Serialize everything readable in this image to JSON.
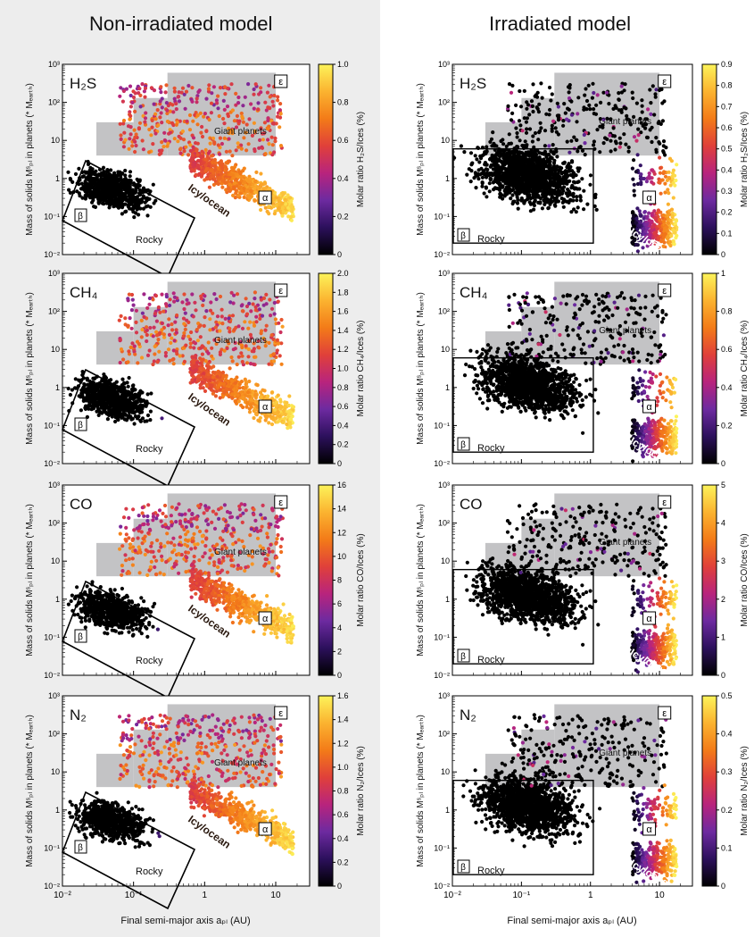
{
  "titles": {
    "left": "Non-irradiated model",
    "right": "Irradiated model"
  },
  "xlabel_left": "Final semi-major axis aₚₗ (AU)",
  "xlabel_right": "Final semi-major axis aₚₗ (AU)",
  "ylabel": "Mass of solids Mˢₚₗ in planets (* Mₑₐᵣₜₕ)",
  "region_labels": {
    "epsilon": "ε",
    "giant": "Giant planets",
    "alpha": "α",
    "beta": "β",
    "rocky": "Rocky",
    "icy": "Icy/ocean"
  },
  "colormap": [
    "#000000",
    "#2c105c",
    "#6d2aa0",
    "#b8247d",
    "#e0403a",
    "#f37b18",
    "#fbb330",
    "#fcf35a"
  ],
  "chart_data": [
    {
      "type": "scatter",
      "panel": "left",
      "species": "H₂S",
      "cbar_label": "Molar ratio H₂S/Ices (%)",
      "cbar_ticks": [
        "0",
        "0.2",
        "0.4",
        "0.6",
        "0.8",
        "1.0"
      ],
      "cbar_range": [
        0,
        1.0
      ],
      "xlim": [
        0.01,
        30
      ],
      "ylim": [
        0.01,
        1000
      ],
      "xscale": "log",
      "yscale": "log",
      "xticks": [
        "10⁻²",
        "10⁻¹",
        "1",
        "10"
      ],
      "yticks": [
        "10⁻²",
        "10⁻¹",
        "1",
        "10",
        "10²",
        "10³"
      ]
    },
    {
      "type": "scatter",
      "panel": "right",
      "species": "H₂S",
      "cbar_label": "Molar ratio H₂S/Ices (%)",
      "cbar_ticks": [
        "0",
        "0.1",
        "0.2",
        "0.3",
        "0.4",
        "0.5",
        "0.6",
        "0.7",
        "0.8",
        "0.9"
      ],
      "cbar_range": [
        0,
        0.9
      ],
      "xlim": [
        0.01,
        30
      ],
      "ylim": [
        0.01,
        1000
      ],
      "xscale": "log",
      "yscale": "log",
      "xticks": [
        "10⁻²",
        "10⁻¹",
        "1",
        "10"
      ],
      "yticks": [
        "10⁻²",
        "10⁻¹",
        "1",
        "10",
        "10²",
        "10³"
      ]
    },
    {
      "type": "scatter",
      "panel": "left",
      "species": "CH₄",
      "cbar_label": "Molar ratio CH₄/Ices (%)",
      "cbar_ticks": [
        "0",
        "0.2",
        "0.4",
        "0.6",
        "0.8",
        "1.0",
        "1.2",
        "1.4",
        "1.6",
        "1.8",
        "2.0"
      ],
      "cbar_range": [
        0,
        2.0
      ],
      "xlim": [
        0.01,
        30
      ],
      "ylim": [
        0.01,
        1000
      ],
      "xscale": "log",
      "yscale": "log",
      "xticks": [
        "10⁻²",
        "10⁻¹",
        "1",
        "10"
      ],
      "yticks": [
        "10⁻²",
        "10⁻¹",
        "1",
        "10",
        "10²",
        "10³"
      ]
    },
    {
      "type": "scatter",
      "panel": "right",
      "species": "CH₄",
      "cbar_label": "Molar ratio CH₄/Ices (%)",
      "cbar_ticks": [
        "0",
        "0.2",
        "0.4",
        "0.6",
        "0.8",
        "1"
      ],
      "cbar_range": [
        0,
        1
      ],
      "xlim": [
        0.01,
        30
      ],
      "ylim": [
        0.01,
        1000
      ],
      "xscale": "log",
      "yscale": "log",
      "xticks": [
        "10⁻²",
        "10⁻¹",
        "1",
        "10"
      ],
      "yticks": [
        "10⁻²",
        "10⁻¹",
        "1",
        "10",
        "10²",
        "10³"
      ]
    },
    {
      "type": "scatter",
      "panel": "left",
      "species": "CO",
      "cbar_label": "Molar ratio CO/Ices (%)",
      "cbar_ticks": [
        "0",
        "2",
        "4",
        "6",
        "8",
        "10",
        "12",
        "14",
        "16"
      ],
      "cbar_range": [
        0,
        16
      ],
      "xlim": [
        0.01,
        30
      ],
      "ylim": [
        0.01,
        1000
      ],
      "xscale": "log",
      "yscale": "log",
      "xticks": [
        "10⁻²",
        "10⁻¹",
        "1",
        "10"
      ],
      "yticks": [
        "10⁻²",
        "10⁻¹",
        "1",
        "10",
        "10²",
        "10³"
      ]
    },
    {
      "type": "scatter",
      "panel": "right",
      "species": "CO",
      "cbar_label": "Molar ratio CO/Ices (%)",
      "cbar_ticks": [
        "0",
        "1",
        "2",
        "3",
        "4",
        "5"
      ],
      "cbar_range": [
        0,
        5
      ],
      "xlim": [
        0.01,
        30
      ],
      "ylim": [
        0.01,
        1000
      ],
      "xscale": "log",
      "yscale": "log",
      "xticks": [
        "10⁻²",
        "10⁻¹",
        "1",
        "10"
      ],
      "yticks": [
        "10⁻²",
        "10⁻¹",
        "1",
        "10",
        "10²",
        "10³"
      ]
    },
    {
      "type": "scatter",
      "panel": "left",
      "species": "N₂",
      "cbar_label": "Molar ratio N₂/Ices (%)",
      "cbar_ticks": [
        "0",
        "0.2",
        "0.4",
        "0.6",
        "0.8",
        "1.0",
        "1.2",
        "1.4",
        "1.6"
      ],
      "cbar_range": [
        0,
        1.6
      ],
      "xlim": [
        0.01,
        30
      ],
      "ylim": [
        0.01,
        1000
      ],
      "xscale": "log",
      "yscale": "log",
      "xticks": [
        "10⁻²",
        "10⁻¹",
        "1",
        "10"
      ],
      "yticks": [
        "10⁻²",
        "10⁻¹",
        "1",
        "10",
        "10²",
        "10³"
      ]
    },
    {
      "type": "scatter",
      "panel": "right",
      "species": "N₂",
      "cbar_label": "Molar ratio N₂/Ices (%)",
      "cbar_ticks": [
        "0",
        "0.1",
        "0.2",
        "0.3",
        "0.4",
        "0.5"
      ],
      "cbar_range": [
        0,
        0.5
      ],
      "xlim": [
        0.01,
        30
      ],
      "ylim": [
        0.01,
        1000
      ],
      "xscale": "log",
      "yscale": "log",
      "xticks": [
        "10⁻²",
        "10⁻¹",
        "1",
        "10"
      ],
      "yticks": [
        "10⁻²",
        "10⁻¹",
        "1",
        "10",
        "10²",
        "10³"
      ]
    }
  ]
}
